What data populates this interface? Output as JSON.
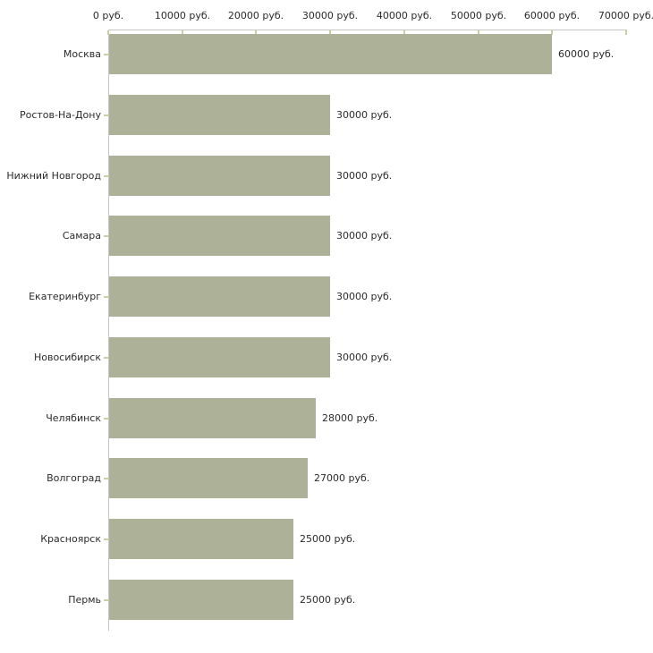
{
  "chart_data": {
    "type": "bar",
    "orientation": "horizontal",
    "title": "",
    "xlabel": "",
    "ylabel": "",
    "grid": false,
    "legend": false,
    "xlim": [
      0,
      70000
    ],
    "x_tick_values": [
      0,
      10000,
      20000,
      30000,
      40000,
      50000,
      60000,
      70000
    ],
    "x_tick_labels": [
      "0 руб.",
      "10000 руб.",
      "20000 руб.",
      "30000 руб.",
      "40000 руб.",
      "50000 руб.",
      "60000 руб.",
      "70000 руб."
    ],
    "categories": [
      "Москва",
      "Ростов-На-Дону",
      "Нижний Новгород",
      "Самара",
      "Екатеринбург",
      "Новосибирск",
      "Челябинск",
      "Волгоград",
      "Красноярск",
      "Пермь"
    ],
    "values": [
      60000,
      30000,
      30000,
      30000,
      30000,
      30000,
      28000,
      27000,
      25000,
      25000
    ],
    "value_labels": [
      "60000 руб.",
      "30000 руб.",
      "30000 руб.",
      "30000 руб.",
      "30000 руб.",
      "30000 руб.",
      "28000 руб.",
      "27000 руб.",
      "25000 руб.",
      "25000 руб."
    ],
    "colors": {
      "bar": "#acb198",
      "axis_line": "#c6c6c6",
      "tick": "#cdcda4",
      "text": "#2b2b2b",
      "background": "#ffffff"
    }
  }
}
